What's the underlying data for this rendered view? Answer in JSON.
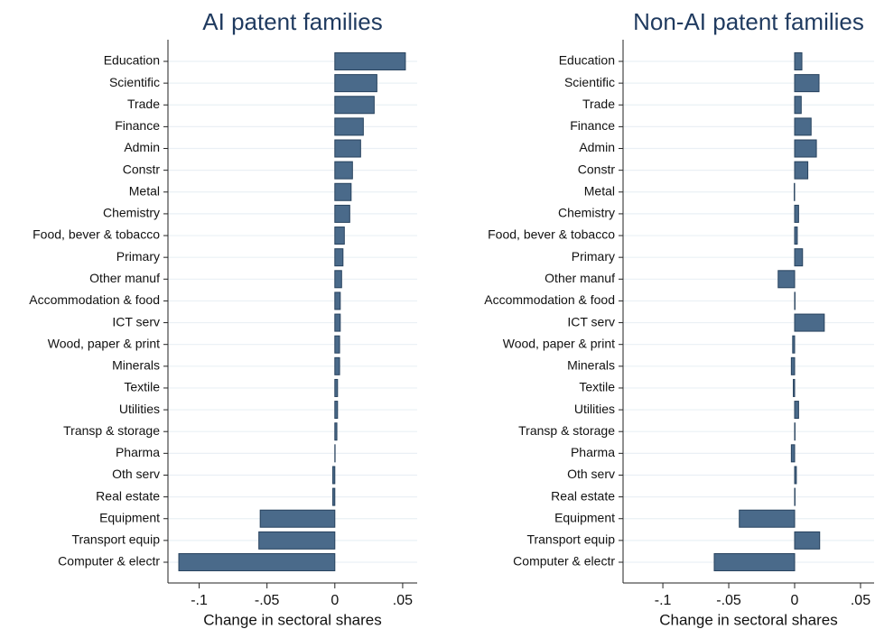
{
  "chart_data": [
    {
      "type": "barh",
      "title": "AI patent families",
      "xlabel": "Change in sectoral shares",
      "categories": [
        "Education",
        "Scientific",
        "Trade",
        "Finance",
        "Admin",
        "Constr",
        "Metal",
        "Chemistry",
        "Food, bever & tobacco",
        "Primary",
        "Other manuf",
        "Accommodation & food",
        "ICT serv",
        "Wood, paper & print",
        "Minerals",
        "Textile",
        "Utilities",
        "Transp & storage",
        "Pharma",
        "Oth serv",
        "Real estate",
        "Equipment",
        "Transport equip",
        "Computer & electr"
      ],
      "values": [
        0.052,
        0.031,
        0.029,
        0.021,
        0.019,
        0.013,
        0.012,
        0.011,
        0.007,
        0.006,
        0.005,
        0.004,
        0.004,
        0.0035,
        0.0035,
        0.002,
        0.002,
        0.0015,
        0.0002,
        -0.0015,
        -0.0015,
        -0.055,
        -0.056,
        -0.115
      ],
      "color": "#4a6a8a",
      "xlim": [
        -0.123,
        0.0607
      ],
      "xticks": [
        {
          "value": -0.1,
          "label": "-.1"
        },
        {
          "value": -0.05,
          "label": "-.05"
        },
        0,
        {
          "value": 0.05,
          "label": ".05"
        }
      ],
      "grid": true
    },
    {
      "type": "barh",
      "title": "Non-AI patent families",
      "xlabel": "Change in sectoral shares",
      "categories": [
        "Education",
        "Scientific",
        "Trade",
        "Finance",
        "Admin",
        "Constr",
        "Metal",
        "Chemistry",
        "Food, bever & tobacco",
        "Primary",
        "Other manuf",
        "Accommodation & food",
        "ICT serv",
        "Wood, paper & print",
        "Minerals",
        "Textile",
        "Utilities",
        "Transp & storage",
        "Pharma",
        "Oth serv",
        "Real estate",
        "Equipment",
        "Transport equip",
        "Computer & electr"
      ],
      "values": [
        0.0055,
        0.0185,
        0.005,
        0.0125,
        0.0165,
        0.01,
        -0.0003,
        0.003,
        0.002,
        0.006,
        -0.0125,
        0.0003,
        0.0225,
        -0.0015,
        -0.0025,
        -0.001,
        0.003,
        0.0003,
        -0.0025,
        0.0013,
        0.0003,
        -0.042,
        0.019,
        -0.061
      ],
      "color": "#4a6a8a",
      "xlim": [
        -0.1302,
        0.0603
      ],
      "xticks": [
        {
          "value": -0.1,
          "label": "-.1"
        },
        {
          "value": -0.05,
          "label": "-.05"
        },
        0,
        {
          "value": 0.05,
          "label": ".05"
        }
      ],
      "grid": true
    }
  ]
}
